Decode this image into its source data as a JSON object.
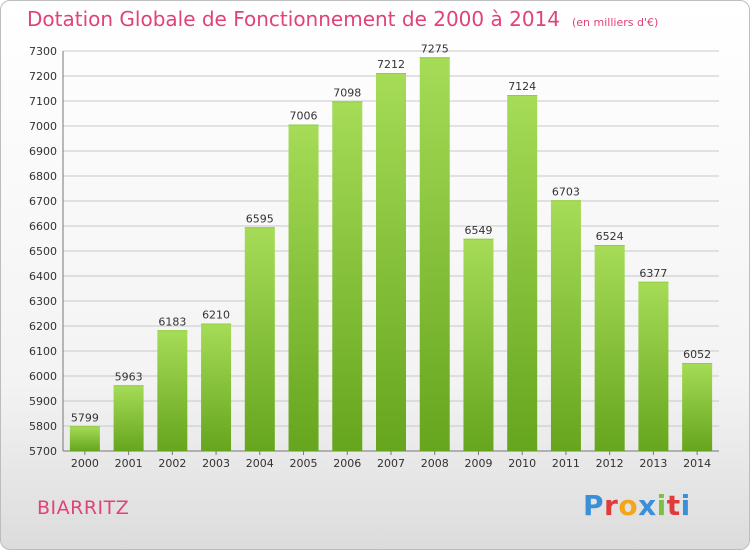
{
  "header": {
    "title": "Dotation Globale de Fonctionnement de 2000 à 2014",
    "subtitle": "(en milliers d'€)"
  },
  "footer": {
    "place": "BIARRITZ",
    "logo_text": "Proxiti",
    "logo_colors": [
      "#3a8fd8",
      "#e03a3a",
      "#f2a71b",
      "#3a8fd8",
      "#7ac143",
      "#e03a3a",
      "#3a8fd8"
    ]
  },
  "chart_data": {
    "type": "bar",
    "categories": [
      "2000",
      "2001",
      "2002",
      "2003",
      "2004",
      "2005",
      "2006",
      "2007",
      "2008",
      "2009",
      "2010",
      "2011",
      "2012",
      "2013",
      "2014"
    ],
    "values": [
      5799,
      5963,
      6183,
      6210,
      6595,
      7006,
      7098,
      7212,
      7275,
      6549,
      7124,
      6703,
      6524,
      6377,
      6052
    ],
    "ylim": [
      5700,
      7300
    ],
    "yticks": [
      5700,
      5800,
      5900,
      6000,
      6100,
      6200,
      6300,
      6400,
      6500,
      6600,
      6700,
      6800,
      6900,
      7000,
      7100,
      7200,
      7300
    ],
    "grid": true,
    "bar_color_top": "#a6dc57",
    "bar_color_bottom": "#66a51e",
    "xlabel": "",
    "ylabel": ""
  }
}
